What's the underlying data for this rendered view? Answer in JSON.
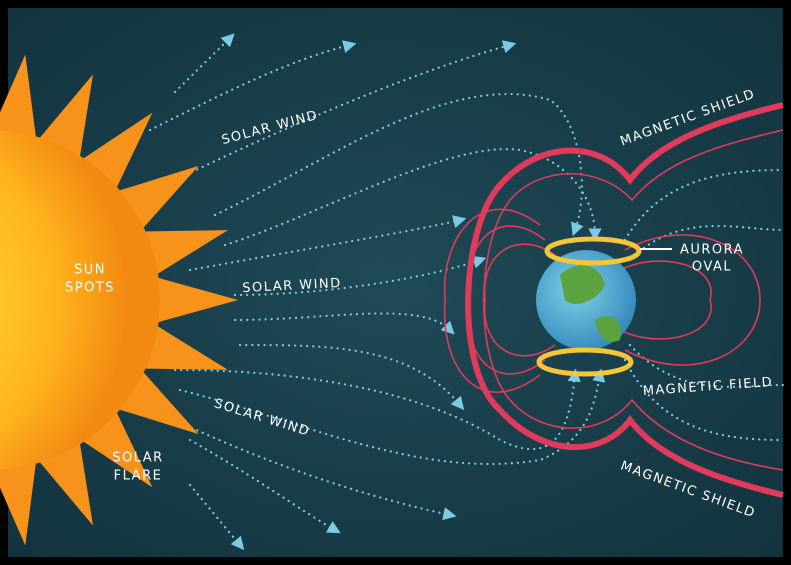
{
  "labels": {
    "solar_wind": [
      "SOLAR WIND",
      "SOLAR WIND",
      "SOLAR WIND"
    ],
    "sun_spots": [
      "SUN",
      "SPOTS"
    ],
    "solar_flare": [
      "SOLAR",
      "FLARE"
    ],
    "aurora_oval": [
      "AURORA",
      "OVAL"
    ],
    "magnetic_field": "MAGNETIC FIELD",
    "magnetic_shield": [
      "MAGNETIC SHIELD",
      "MAGNETIC SHIELD"
    ]
  }
}
